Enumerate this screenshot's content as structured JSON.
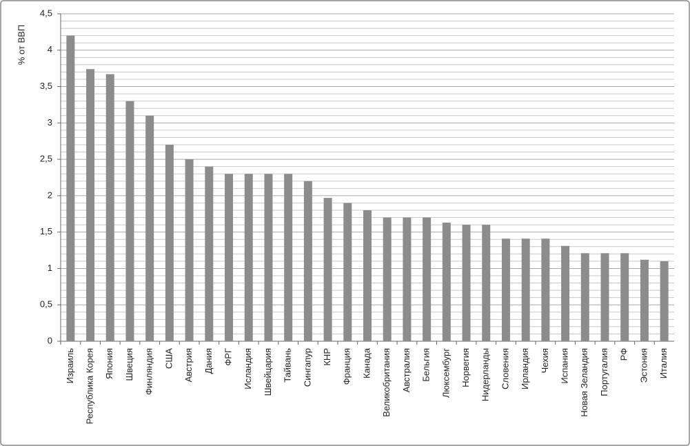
{
  "chart_data": {
    "type": "bar",
    "y_label": "% от ВВП",
    "categories": [
      "Израиль",
      "Республика Корея",
      "Япония",
      "Швеция",
      "Финляндия",
      "США",
      "Австрия",
      "Дания",
      "ФРГ",
      "Исландия",
      "Швейцария",
      "Тайвань",
      "Сингапур",
      "КНР",
      "Франция",
      "Канада",
      "Великобритания",
      "Австралия",
      "Бельгия",
      "Люксембург",
      "Норвегия",
      "Нидерланды",
      "Словения",
      "Ирландия",
      "Чехия",
      "Испания",
      "Новая Зеландия",
      "Португалия",
      "РФ",
      "Эстония",
      "Италия"
    ],
    "values": [
      4.2,
      3.74,
      3.67,
      3.3,
      3.1,
      2.7,
      2.5,
      2.4,
      2.3,
      2.3,
      2.3,
      2.3,
      2.2,
      1.97,
      1.9,
      1.8,
      1.7,
      1.7,
      1.7,
      1.63,
      1.6,
      1.6,
      1.41,
      1.41,
      1.41,
      1.31,
      1.21,
      1.21,
      1.21,
      1.12,
      1.1
    ],
    "color": "#8c8c8c",
    "ylim": [
      0,
      4.5
    ],
    "yticks": [
      0,
      {
        "value": 0.5,
        "label": "0,5"
      },
      1,
      {
        "value": 1.5,
        "label": "1,5"
      },
      2,
      {
        "value": 2.5,
        "label": "2,5"
      },
      3,
      {
        "value": 3.5,
        "label": "3,5"
      },
      4,
      {
        "value": 4.5,
        "label": "4,5"
      }
    ],
    "grid": true
  }
}
